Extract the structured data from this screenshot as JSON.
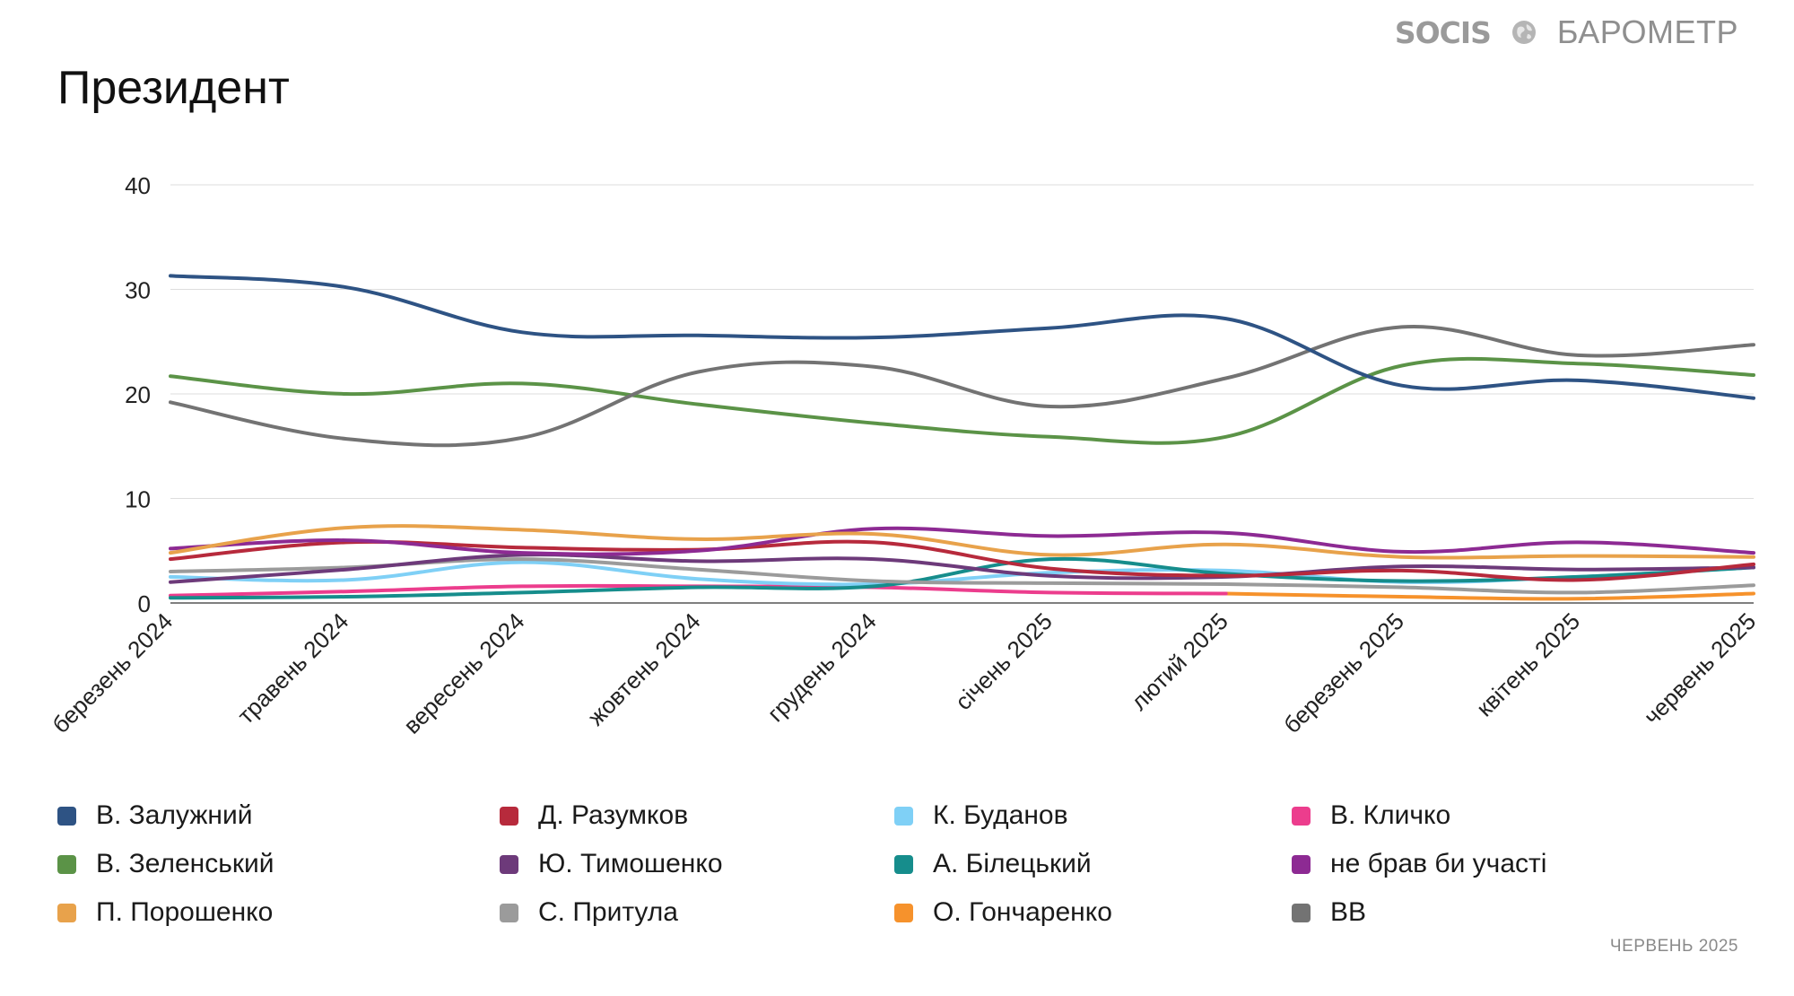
{
  "header": {
    "logo_left": "SOCIS",
    "logo_right": "БАРОМЕТР"
  },
  "title": "Президент",
  "footer": {
    "date": "ЧЕРВЕНЬ 2025"
  },
  "chart_data": {
    "type": "line",
    "title": "Президент",
    "categories": [
      "березень 2024",
      "травень 2024",
      "вересень 2024",
      "жовтень 2024",
      "грудень 2024",
      "січень 2025",
      "лютий 2025",
      "березень 2025",
      "квітень 2025",
      "червень 2025"
    ],
    "ylim": [
      0,
      40
    ],
    "yticks": [
      0,
      10,
      20,
      30,
      40
    ],
    "grid": true,
    "smooth": true,
    "legend_position": "bottom",
    "series": [
      {
        "name": "В. Залужний",
        "color": "#2e5384",
        "values": [
          31.3,
          30.2,
          25.9,
          25.6,
          25.4,
          26.3,
          27.2,
          20.8,
          21.3,
          19.6
        ]
      },
      {
        "name": "Д. Разумков",
        "color": "#b72a3c",
        "values": [
          4.2,
          5.8,
          5.3,
          5.1,
          5.8,
          3.3,
          2.6,
          3.1,
          2.2,
          3.7
        ]
      },
      {
        "name": "К. Буданов",
        "color": "#7fd0f6",
        "values": [
          2.5,
          2.2,
          3.9,
          2.3,
          1.8,
          2.9,
          3.1,
          2.0,
          2.5,
          3.4
        ]
      },
      {
        "name": "В. Кличко",
        "color": "#ec3d8d",
        "values": [
          0.7,
          1.1,
          1.6,
          1.6,
          1.5,
          1.0,
          0.9,
          null,
          null,
          null
        ]
      },
      {
        "name": "В. Зеленський",
        "color": "#5b9347",
        "values": [
          21.7,
          20.0,
          21.0,
          19.0,
          17.2,
          15.9,
          15.9,
          22.7,
          22.9,
          21.8
        ]
      },
      {
        "name": "Ю. Тимошенко",
        "color": "#6d3a7a",
        "values": [
          2.0,
          3.2,
          4.6,
          4.0,
          4.2,
          2.6,
          2.5,
          3.5,
          3.2,
          3.4
        ]
      },
      {
        "name": "А. Білецький",
        "color": "#168d8c",
        "values": [
          0.5,
          0.6,
          1.0,
          1.5,
          1.6,
          4.2,
          2.8,
          2.1,
          2.5,
          3.4
        ]
      },
      {
        "name": "не брав би участі",
        "color": "#8d2a93",
        "values": [
          5.2,
          6.0,
          4.8,
          5.0,
          7.1,
          6.4,
          6.7,
          4.9,
          5.8,
          4.8
        ]
      },
      {
        "name": "П. Порошенко",
        "color": "#e8a24b",
        "values": [
          4.8,
          7.2,
          7.0,
          6.1,
          6.6,
          4.6,
          5.6,
          4.4,
          4.5,
          4.4
        ]
      },
      {
        "name": "С. Притула",
        "color": "#9b9b9b",
        "values": [
          3.0,
          3.4,
          4.2,
          3.2,
          2.1,
          1.9,
          1.8,
          1.5,
          1.0,
          1.7
        ]
      },
      {
        "name": "О. Гончаренко",
        "color": "#f6922c",
        "values": [
          null,
          null,
          null,
          null,
          null,
          null,
          0.9,
          0.6,
          0.4,
          0.9
        ]
      },
      {
        "name": "ВВ",
        "color": "#737373",
        "values": [
          19.2,
          15.7,
          15.8,
          22.1,
          22.6,
          18.8,
          21.5,
          26.4,
          23.7,
          24.7
        ]
      }
    ]
  }
}
